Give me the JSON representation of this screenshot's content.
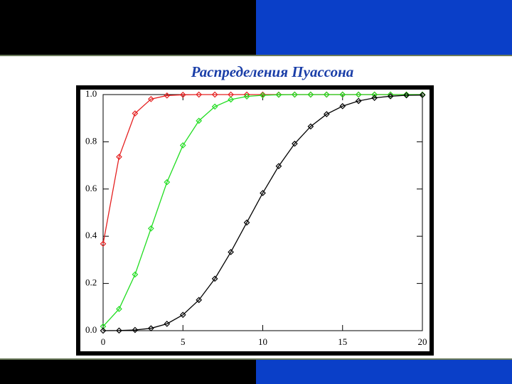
{
  "chart_data": {
    "type": "line",
    "title": "Распределения Пуассона",
    "x": [
      0,
      1,
      2,
      3,
      4,
      5,
      6,
      7,
      8,
      9,
      10,
      11,
      12,
      13,
      14,
      15,
      16,
      17,
      18,
      19,
      20
    ],
    "series": [
      {
        "color": "#e52020",
        "values": [
          0.368,
          0.736,
          0.92,
          0.981,
          0.996,
          0.999,
          1.0,
          1.0,
          1.0,
          1.0,
          1.0,
          1.0,
          1.0,
          1.0,
          1.0,
          1.0,
          1.0,
          1.0,
          1.0,
          1.0,
          1.0
        ]
      },
      {
        "color": "#22dd22",
        "values": [
          0.018,
          0.092,
          0.238,
          0.433,
          0.629,
          0.785,
          0.889,
          0.949,
          0.979,
          0.992,
          0.997,
          0.999,
          1.0,
          1.0,
          1.0,
          1.0,
          1.0,
          1.0,
          1.0,
          1.0,
          1.0
        ]
      },
      {
        "color": "#000000",
        "values": [
          0.0,
          0.0005,
          0.003,
          0.01,
          0.029,
          0.067,
          0.13,
          0.22,
          0.333,
          0.458,
          0.583,
          0.697,
          0.792,
          0.865,
          0.917,
          0.951,
          0.973,
          0.986,
          0.993,
          0.997,
          0.998
        ]
      }
    ],
    "xlim": [
      0,
      20
    ],
    "xticks": [
      0,
      5,
      10,
      15,
      20
    ],
    "ylim": [
      0,
      1
    ],
    "yticks": [
      {
        "value": 0,
        "label": "0.0"
      },
      0.2,
      0.4,
      0.6,
      0.8,
      {
        "value": 1,
        "label": "1.0"
      }
    ]
  }
}
